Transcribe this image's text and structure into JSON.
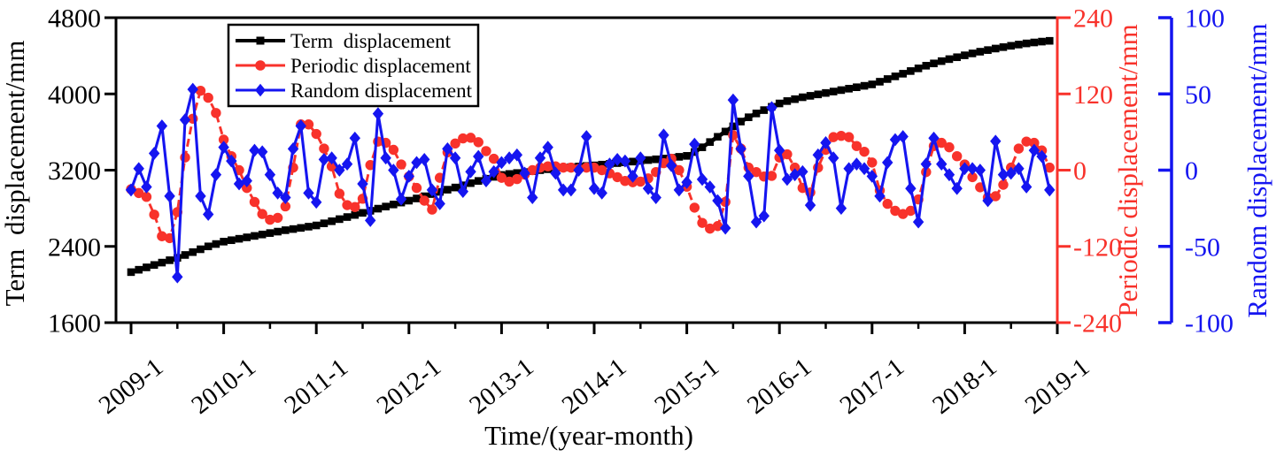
{
  "chart_data": {
    "type": "line",
    "title": "",
    "xlabel": "Time/(year-month)",
    "x_interval": "monthly",
    "x_start": "2009-1",
    "x_end": "2018-12",
    "x_tick_labels": [
      "2009-1",
      "2010-1",
      "2011-1",
      "2012-1",
      "2013-1",
      "2014-1",
      "2015-1",
      "2016-1",
      "2017-1",
      "2018-1",
      "2019-1"
    ],
    "grid": false,
    "legend_position": "top-left-inside",
    "axes": {
      "left": {
        "label": "Term  displacement/mm",
        "range": [
          1600,
          4800
        ],
        "ticks": [
          4800,
          4000,
          3200,
          2400,
          1600
        ],
        "color": "#000000"
      },
      "right1": {
        "label": "Periodic displacement/mm",
        "range": [
          -240,
          240
        ],
        "ticks": [
          240,
          120,
          0,
          -120,
          -240
        ],
        "color": "#f8322b"
      },
      "right2": {
        "label": "Random displacement/mm",
        "range": [
          -100,
          100
        ],
        "ticks": [
          100,
          50,
          0,
          -50,
          -100
        ],
        "color": "#1515f0"
      }
    },
    "series": [
      {
        "name": "Term  displacement",
        "axis": "left",
        "color": "#000000",
        "marker": "square",
        "line_style": "solid",
        "values": [
          2130,
          2155,
          2180,
          2205,
          2230,
          2255,
          2280,
          2310,
          2340,
          2370,
          2400,
          2425,
          2450,
          2465,
          2480,
          2495,
          2510,
          2525,
          2540,
          2555,
          2570,
          2582,
          2594,
          2607,
          2620,
          2642,
          2664,
          2686,
          2708,
          2730,
          2752,
          2774,
          2796,
          2818,
          2840,
          2860,
          2880,
          2903,
          2926,
          2949,
          2972,
          2995,
          3018,
          3041,
          3064,
          3087,
          3110,
          3130,
          3150,
          3160,
          3170,
          3180,
          3190,
          3200,
          3210,
          3218,
          3226,
          3232,
          3238,
          3244,
          3250,
          3258,
          3266,
          3274,
          3282,
          3290,
          3298,
          3306,
          3314,
          3322,
          3330,
          3340,
          3350,
          3390,
          3440,
          3495,
          3550,
          3605,
          3660,
          3710,
          3755,
          3795,
          3830,
          3865,
          3900,
          3925,
          3945,
          3965,
          3980,
          3995,
          4010,
          4025,
          4040,
          4055,
          4070,
          4085,
          4100,
          4128,
          4156,
          4184,
          4212,
          4240,
          4268,
          4296,
          4320,
          4344,
          4365,
          4385,
          4405,
          4425,
          4443,
          4460,
          4476,
          4491,
          4505,
          4518,
          4530,
          4540,
          4549,
          4557
        ]
      },
      {
        "name": "Periodic displacement",
        "axis": "right1",
        "color": "#f8322b",
        "marker": "circle",
        "line_style": "dash",
        "values": [
          -30,
          -36,
          -42,
          -70,
          -104,
          -107,
          -66,
          20,
          81,
          125,
          114,
          90,
          48,
          22,
          0,
          -28,
          -50,
          -69,
          -78,
          -75,
          -57,
          4,
          72,
          72,
          57,
          34,
          6,
          -37,
          -55,
          -58,
          -45,
          8,
          45,
          43,
          32,
          9,
          -10,
          -28,
          -48,
          -62,
          -12,
          28,
          42,
          50,
          51,
          44,
          30,
          18,
          -12,
          -18,
          -14,
          -7,
          0,
          4,
          6,
          6,
          4,
          4,
          2,
          4,
          4,
          0,
          -5,
          -11,
          -17,
          -19,
          -18,
          -13,
          -3,
          11,
          18,
          0,
          -26,
          -59,
          -83,
          -92,
          -88,
          -50,
          55,
          34,
          4,
          -3,
          -10,
          -9,
          20,
          25,
          4,
          -28,
          -35,
          4,
          32,
          52,
          54,
          52,
          38,
          29,
          12,
          -32,
          -53,
          -64,
          -69,
          -64,
          -46,
          -3,
          38,
          43,
          36,
          22,
          9,
          -11,
          -27,
          -43,
          -41,
          -23,
          4,
          34,
          45,
          43,
          31,
          4
        ]
      },
      {
        "name": "Random displacement",
        "axis": "right2",
        "color": "#1515f0",
        "marker": "diamond",
        "line_style": "solid",
        "values": [
          -13,
          1,
          -11,
          11,
          29,
          -17,
          -70,
          33,
          53,
          -17,
          -29,
          -3,
          15,
          6,
          -9,
          -7,
          13,
          12,
          -3,
          -15,
          -18,
          14,
          29,
          -15,
          -21,
          7,
          8,
          0,
          4,
          21,
          -9,
          -33,
          37,
          8,
          0,
          -19,
          -4,
          5,
          7,
          -13,
          -22,
          14,
          8,
          -14,
          -1,
          9,
          -7,
          -1,
          5,
          8,
          10,
          -2,
          -18,
          8,
          15,
          -2,
          -13,
          -13,
          0,
          22,
          -12,
          -15,
          4,
          7,
          6,
          -4,
          8,
          -12,
          -18,
          23,
          3,
          -13,
          -8,
          17,
          -6,
          -11,
          -20,
          -38,
          46,
          14,
          -4,
          -34,
          -30,
          41,
          13,
          -6,
          -3,
          -1,
          -23,
          10,
          18,
          8,
          -25,
          1,
          4,
          1,
          -4,
          -17,
          5,
          20,
          22,
          -12,
          -34,
          4,
          21,
          4,
          -3,
          -12,
          1,
          1,
          0,
          -20,
          19,
          -3,
          -2,
          1,
          -11,
          13,
          9,
          -13
        ]
      }
    ]
  }
}
